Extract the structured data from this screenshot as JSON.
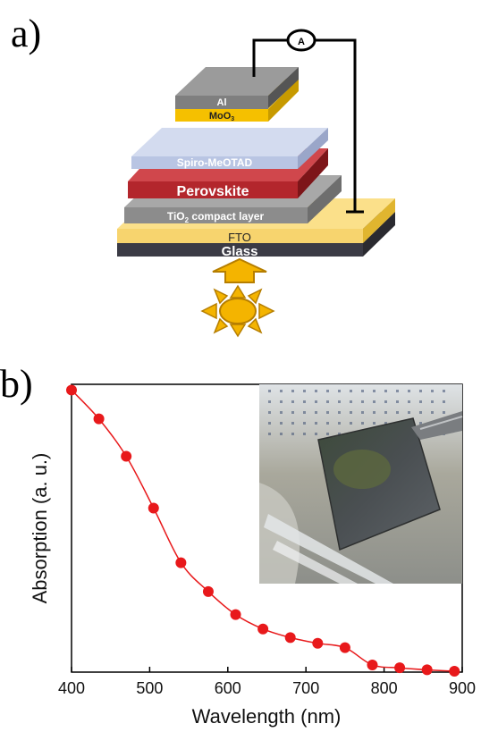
{
  "panel_a": {
    "label": "a)",
    "ammeter": "A",
    "layers": {
      "al": "Al",
      "moo3": "MoO",
      "moo3_sub": "3",
      "spiro": "Spiro-MeOTAD",
      "perovskite": "Perovskite",
      "tio2_prefix": "TiO",
      "tio2_sub": "2",
      "tio2_suffix": " compact layer",
      "fto": "FTO",
      "glass": "Glass"
    },
    "colors": {
      "al": "#7f7f7f",
      "moo3": "#f5c000",
      "spiro": "#b9c5e3",
      "perovskite": "#b3262c",
      "tio2": "#8c8c8c",
      "fto": "#f7d46e",
      "glass": "#3b3b45",
      "sun": "#f4b400"
    }
  },
  "panel_b": {
    "label": "b)",
    "photo_icon": "perovskite-film-photo"
  },
  "chart_data": {
    "type": "line",
    "xlabel": "Wavelength (nm)",
    "ylabel": "Absorption (a. u.)",
    "xlim": [
      400,
      900
    ],
    "ylim": [
      0,
      1
    ],
    "xticks": [
      400,
      500,
      600,
      700,
      800,
      900
    ],
    "color": "#e8191b",
    "markers": true,
    "series": [
      {
        "x": [
          400,
          435,
          470,
          505,
          540,
          575,
          610,
          645,
          680,
          715,
          750,
          785,
          820,
          855,
          890
        ],
        "y": [
          0.98,
          0.88,
          0.75,
          0.57,
          0.38,
          0.28,
          0.2,
          0.15,
          0.12,
          0.1,
          0.085,
          0.025,
          0.015,
          0.008,
          0.003
        ]
      }
    ]
  }
}
